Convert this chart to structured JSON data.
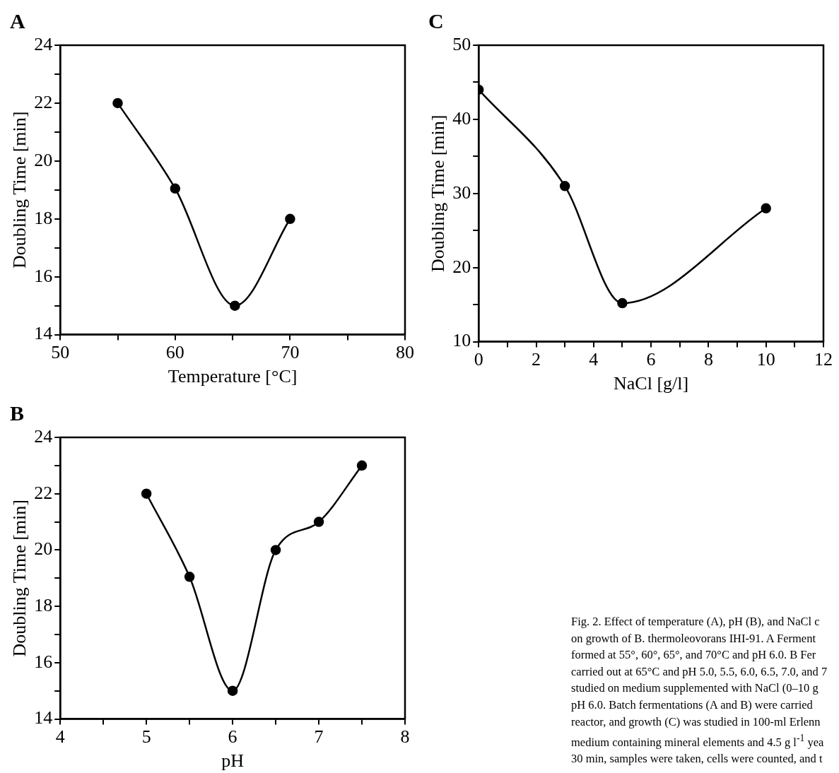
{
  "chart_data": [
    {
      "type": "line",
      "title": "A",
      "xlabel": "Temperature [°C]",
      "ylabel": "Doubling Time [min]",
      "x": [
        55,
        60,
        65.2,
        70
      ],
      "values": [
        22,
        19.05,
        15,
        18
      ],
      "color": "#000000",
      "marker": "circle",
      "line_style": "solid",
      "grid": false,
      "legend": false,
      "xlim": [
        50,
        80
      ],
      "ylim": [
        14,
        24
      ],
      "xticks": [
        50,
        {
          "value": 55,
          "label": null
        },
        60,
        {
          "value": 65,
          "label": null
        },
        70,
        {
          "value": 75,
          "label": null
        },
        80
      ],
      "yticks": [
        14,
        {
          "value": 15,
          "label": null
        },
        16,
        {
          "value": 17,
          "label": null
        },
        18,
        {
          "value": 19,
          "label": null
        },
        20,
        {
          "value": 21,
          "label": null
        },
        22,
        {
          "value": 23,
          "label": null
        },
        24
      ]
    },
    {
      "type": "line",
      "title": "C",
      "xlabel": "NaCl [g/l]",
      "ylabel": "Doubling Time [min]",
      "x": [
        0,
        3,
        5,
        10
      ],
      "values": [
        44,
        31,
        15.2,
        28
      ],
      "color": "#000000",
      "marker": "circle",
      "line_style": "solid",
      "grid": false,
      "legend": false,
      "xlim": [
        0,
        12
      ],
      "ylim": [
        10,
        50
      ],
      "xticks": [
        0,
        {
          "value": 1,
          "label": null
        },
        2,
        {
          "value": 3,
          "label": null
        },
        4,
        {
          "value": 5,
          "label": null
        },
        6,
        {
          "value": 7,
          "label": null
        },
        8,
        {
          "value": 9,
          "label": null
        },
        10,
        {
          "value": 11,
          "label": null
        },
        12
      ],
      "yticks": [
        10,
        {
          "value": 15,
          "label": null
        },
        20,
        {
          "value": 25,
          "label": null
        },
        30,
        {
          "value": 35,
          "label": null
        },
        40,
        {
          "value": 45,
          "label": null
        },
        50
      ]
    },
    {
      "type": "line",
      "title": "B",
      "xlabel": "pH",
      "ylabel": "Doubling Time [min]",
      "x": [
        5,
        5.5,
        6,
        6.5,
        7,
        7.5
      ],
      "values": [
        22,
        19.05,
        15,
        20,
        21,
        23
      ],
      "color": "#000000",
      "marker": "circle",
      "line_style": "solid",
      "grid": false,
      "legend": false,
      "xlim": [
        4,
        8
      ],
      "ylim": [
        14,
        24
      ],
      "xticks": [
        4,
        {
          "value": 4.5,
          "label": null
        },
        5,
        {
          "value": 5.5,
          "label": null
        },
        6,
        {
          "value": 6.5,
          "label": null
        },
        7,
        {
          "value": 7.5,
          "label": null
        },
        8
      ],
      "yticks": [
        14,
        {
          "value": 15,
          "label": null
        },
        16,
        {
          "value": 17,
          "label": null
        },
        18,
        {
          "value": 19,
          "label": null
        },
        20,
        {
          "value": 21,
          "label": null
        },
        22,
        {
          "value": 23,
          "label": null
        },
        24
      ],
      "annotations": [
        "Fig. 2.  Effect of temperature (A), pH (B), and NaCl c",
        "on growth of B. thermoleovorans IHI-91. A Ferment",
        "formed at 55°, 60°, 65°, and 70°C and pH 6.0. B Fer",
        "carried out at 65°C and pH 5.0, 5.5, 6.0, 6.5, 7.0, and 7",
        "studied on medium supplemented with NaCl (0–10 g",
        "pH 6.0. Batch fermentations (A and B) were carried",
        "reactor, and growth (C) was studied in 100-ml Erlenn",
        "medium containing mineral elements and 4.5 g l$^{-1}$ yea",
        "30 min, samples were taken, cells were counted, and t"
      ]
    }
  ]
}
